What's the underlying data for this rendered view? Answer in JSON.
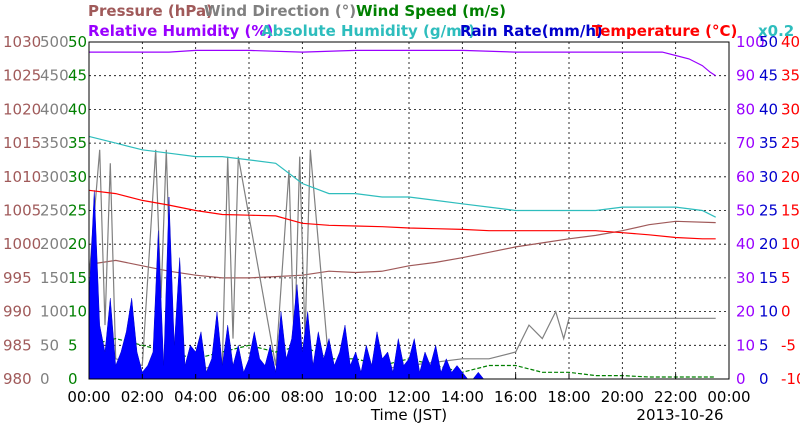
{
  "chart_data": {
    "type": "line",
    "date": "2013-10-26",
    "xlabel": "Time (JST)",
    "x_ticks": [
      "00:00",
      "02:00",
      "04:00",
      "06:00",
      "08:00",
      "10:00",
      "12:00",
      "14:00",
      "16:00",
      "18:00",
      "20:00",
      "22:00",
      "00:00"
    ],
    "grid": true,
    "legend": [
      {
        "label": "Pressure (hPa)",
        "color": "#a05a5a"
      },
      {
        "label": "Wind Direction (°)",
        "color": "#808080"
      },
      {
        "label": "Wind Speed (m/s)",
        "color": "#008000"
      },
      {
        "label": "Relative Humidity (%)",
        "color": "#9900ff"
      },
      {
        "label": "Absolute Humidity (g/m³)",
        "color": "#2ebdbd"
      },
      {
        "label": "Rain Rate(mm/h)",
        "color": "#0000cc"
      },
      {
        "label": "Temperature (°C)",
        "color": "#ff0000"
      }
    ],
    "abs_humidity_scale": "x0.2",
    "axes": {
      "pressure": {
        "range": [
          980,
          1030
        ],
        "ticks": [
          "1030",
          "1025",
          "1020",
          "1015",
          "1010",
          "1005",
          "1000",
          "995",
          "990",
          "985",
          "980"
        ],
        "color": "#a05a5a"
      },
      "wind_direction": {
        "range": [
          0,
          500
        ],
        "ticks": [
          "500",
          "450",
          "400",
          "350",
          "300",
          "250",
          "200",
          "150",
          "100",
          "50",
          "0"
        ],
        "color": "#808080"
      },
      "wind_speed": {
        "range": [
          0,
          50
        ],
        "ticks": [
          "50",
          "45",
          "40",
          "35",
          "30",
          "25",
          "20",
          "15",
          "10",
          "5",
          "0"
        ],
        "color": "#008000"
      },
      "relative_humidity": {
        "range": [
          0,
          100
        ],
        "ticks": [
          "100",
          "90",
          "80",
          "70",
          "60",
          "50",
          "40",
          "30",
          "20",
          "10",
          "0"
        ],
        "color": "#9900ff"
      },
      "rain_rate": {
        "range": [
          0,
          50
        ],
        "ticks": [
          "50",
          "45",
          "40",
          "35",
          "30",
          "25",
          "20",
          "15",
          "10",
          "5",
          "0"
        ],
        "color": "#0000cc"
      },
      "temperature": {
        "range": [
          -10,
          40
        ],
        "ticks": [
          "40",
          "35",
          "30",
          "25",
          "20",
          "15",
          "10",
          "5",
          "0",
          "-5",
          "-10"
        ],
        "color": "#ff0000"
      }
    },
    "series": [
      {
        "name": "Pressure (hPa)",
        "axis": "pressure",
        "style": "line",
        "x": [
          0,
          1,
          2,
          3,
          4,
          5,
          6,
          7,
          8,
          9,
          10,
          11,
          12,
          13,
          14,
          15,
          16,
          17,
          18,
          19,
          20,
          21,
          22,
          23.5
        ],
        "values": [
          997,
          997.6,
          996.8,
          996,
          995.4,
          995,
          995,
          995.2,
          995.4,
          996,
          995.8,
          996,
          996.8,
          997.3,
          998,
          998.8,
          999.6,
          1000.2,
          1000.8,
          1001.3,
          1002,
          1002.9,
          1003.4,
          1003.2
        ]
      },
      {
        "name": "Wind Direction (°)",
        "axis": "wind_direction",
        "style": "line",
        "x": [
          0,
          0.4,
          0.6,
          0.8,
          1,
          2,
          2.5,
          2.7,
          2.9,
          3.1,
          3.3,
          5,
          5.2,
          5.4,
          5.6,
          7,
          7.5,
          7.7,
          7.9,
          8.1,
          8.3,
          9,
          10,
          12,
          14,
          15,
          16,
          16.5,
          17,
          17.5,
          17.8,
          18,
          20,
          22,
          23.5
        ],
        "values": [
          150,
          340,
          80,
          320,
          30,
          20,
          340,
          120,
          340,
          80,
          10,
          20,
          330,
          60,
          330,
          20,
          310,
          40,
          330,
          60,
          340,
          20,
          10,
          20,
          30,
          30,
          40,
          80,
          60,
          100,
          60,
          90,
          90,
          90,
          90
        ]
      },
      {
        "name": "Wind Speed (m/s)",
        "axis": "wind_speed",
        "style": "line",
        "x": [
          0,
          1,
          2,
          3,
          4,
          5,
          6,
          7,
          8,
          9,
          10,
          11,
          12,
          13,
          14,
          15,
          16,
          17,
          18,
          19,
          20,
          21,
          22,
          23,
          23.5
        ],
        "values": [
          5,
          6,
          5,
          4,
          3,
          4,
          5,
          4,
          5,
          3,
          3,
          2,
          3,
          2,
          1,
          2,
          2,
          1,
          1,
          0.5,
          0.5,
          0.3,
          0.3,
          0.3,
          0.3
        ]
      },
      {
        "name": "Relative Humidity (%)",
        "axis": "relative_humidity",
        "style": "line",
        "x": [
          0,
          1,
          2,
          3,
          4,
          6,
          8,
          10,
          12,
          14,
          16,
          18,
          20,
          21.5,
          22,
          22.5,
          23,
          23.3,
          23.5
        ],
        "values": [
          97,
          97,
          97,
          97,
          97.5,
          97.5,
          97,
          97.5,
          97.5,
          97.5,
          97,
          97,
          97,
          97,
          96,
          95,
          93,
          91,
          90
        ]
      },
      {
        "name": "Absolute Humidity (g/m³)",
        "axis": "relative_humidity",
        "style": "line",
        "x": [
          0,
          1,
          2,
          3,
          4,
          5,
          6,
          7,
          8,
          9,
          10,
          11,
          12,
          13,
          14,
          15,
          16,
          17,
          18,
          19,
          20,
          21,
          22,
          23,
          23.5
        ],
        "values": [
          72,
          70,
          68,
          67,
          66,
          66,
          65,
          64,
          58,
          55,
          55,
          54,
          54,
          53,
          52,
          51,
          50,
          50,
          50,
          50,
          51,
          51,
          51,
          50,
          48
        ]
      },
      {
        "name": "Rain Rate(mm/h)",
        "axis": "rain_rate",
        "style": "area",
        "x": [
          0,
          0.2,
          0.4,
          0.6,
          0.8,
          1.0,
          1.2,
          1.4,
          1.6,
          1.8,
          2.0,
          2.2,
          2.4,
          2.6,
          2.8,
          3.0,
          3.2,
          3.4,
          3.6,
          3.8,
          4.0,
          4.2,
          4.4,
          4.6,
          4.8,
          5.0,
          5.2,
          5.4,
          5.6,
          5.8,
          6.0,
          6.2,
          6.4,
          6.6,
          6.8,
          7.0,
          7.2,
          7.4,
          7.6,
          7.8,
          8.0,
          8.2,
          8.4,
          8.6,
          8.8,
          9.0,
          9.2,
          9.4,
          9.6,
          9.8,
          10.0,
          10.2,
          10.4,
          10.6,
          10.8,
          11.0,
          11.2,
          11.4,
          11.6,
          11.8,
          12.0,
          12.2,
          12.4,
          12.6,
          12.8,
          13.0,
          13.2,
          13.4,
          13.6,
          13.8,
          14.0,
          14.2,
          14.4,
          14.6,
          14.8,
          15.0,
          15.5,
          16.0
        ],
        "values": [
          12,
          28,
          8,
          4,
          12,
          2,
          4,
          7,
          12,
          4,
          1,
          2,
          4,
          22,
          2,
          27,
          5,
          18,
          2,
          5,
          4,
          7,
          1,
          3,
          10,
          2,
          8,
          2,
          5,
          1,
          3,
          7,
          3,
          2,
          5,
          1,
          10,
          3,
          6,
          14,
          4,
          10,
          2,
          7,
          3,
          6,
          2,
          4,
          8,
          2,
          4,
          1,
          5,
          2,
          7,
          3,
          4,
          1,
          6,
          2,
          3,
          6,
          1,
          4,
          2,
          5,
          1,
          3,
          1,
          2,
          1,
          0,
          0,
          1,
          0,
          0,
          0,
          0
        ]
      },
      {
        "name": "Temperature (°C)",
        "axis": "temperature",
        "style": "line",
        "x": [
          0,
          1,
          2,
          3,
          4,
          5,
          6,
          7,
          8,
          9,
          10,
          11,
          12,
          13,
          14,
          15,
          16,
          17,
          18,
          19,
          20,
          21,
          22,
          23,
          23.5
        ],
        "values": [
          18,
          17.5,
          16.5,
          15.8,
          15,
          14.4,
          14.3,
          14.2,
          13.1,
          12.8,
          12.7,
          12.6,
          12.4,
          12.3,
          12.2,
          12,
          12,
          12,
          12,
          12,
          11.7,
          11.4,
          11,
          10.8,
          10.8
        ]
      }
    ]
  }
}
